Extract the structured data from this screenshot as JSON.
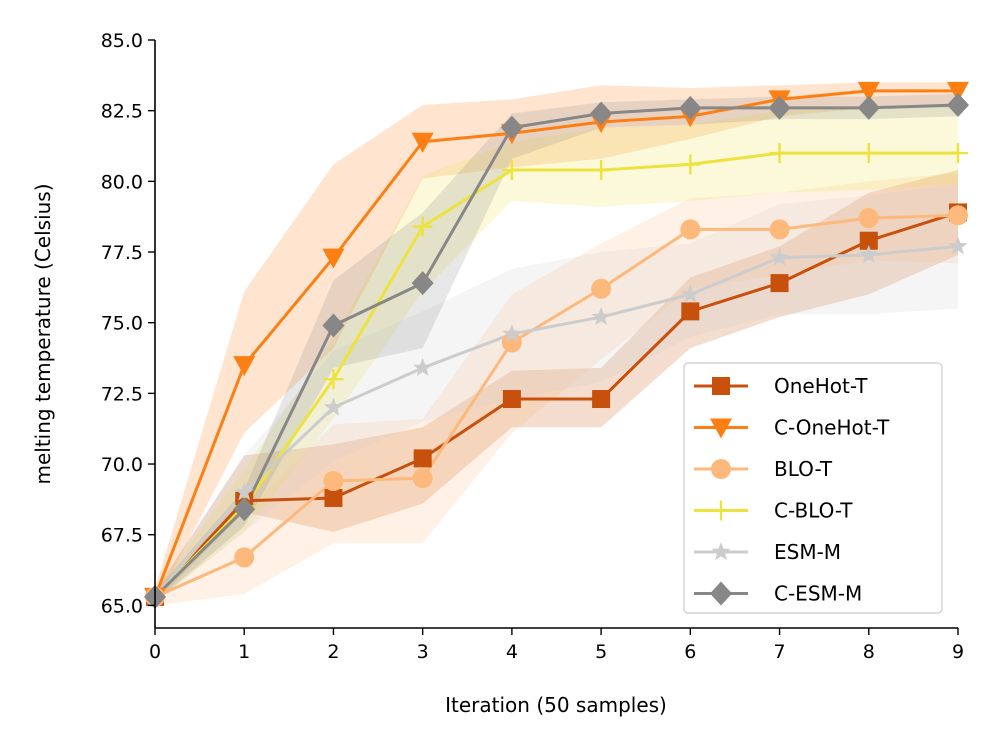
{
  "chart_data": {
    "type": "line",
    "title": "",
    "xlabel": "Iteration (50 samples)",
    "ylabel": "melting temperature (Celsius)",
    "xlim": [
      0,
      9
    ],
    "ylim": [
      64.2,
      85.0
    ],
    "x": [
      0,
      1,
      2,
      3,
      4,
      5,
      6,
      7,
      8,
      9
    ],
    "xticks": [
      "0",
      "1",
      "2",
      "3",
      "4",
      "5",
      "6",
      "7",
      "8",
      "9"
    ],
    "yticks": [
      "65.0",
      "67.5",
      "70.0",
      "72.5",
      "75.0",
      "77.5",
      "80.0",
      "82.5",
      "85.0"
    ],
    "ytick_values": [
      65.0,
      67.5,
      70.0,
      72.5,
      75.0,
      77.5,
      80.0,
      82.5,
      85.0
    ],
    "grid": false,
    "legend_position": "lower-right",
    "series": [
      {
        "name": "OneHot-T",
        "color": "#c6500c",
        "marker": "square",
        "values": [
          65.3,
          68.7,
          68.8,
          70.2,
          72.3,
          72.3,
          75.4,
          76.4,
          77.9,
          78.9
        ],
        "band_low": [
          65.1,
          68.3,
          67.6,
          68.6,
          71.3,
          71.3,
          74.1,
          75.2,
          76.0,
          77.4
        ],
        "band_high": [
          65.5,
          70.3,
          70.7,
          71.3,
          73.3,
          73.4,
          76.6,
          77.7,
          79.6,
          80.4
        ]
      },
      {
        "name": "C-OneHot-T",
        "color": "#fd7f13",
        "marker": "triangle-down",
        "values": [
          65.3,
          73.5,
          77.3,
          81.4,
          81.7,
          82.1,
          82.3,
          82.9,
          83.2,
          83.2
        ],
        "band_low": [
          65.0,
          71.1,
          74.1,
          80.1,
          80.5,
          80.8,
          81.5,
          82.3,
          82.6,
          82.6
        ],
        "band_high": [
          65.6,
          76.1,
          80.6,
          82.7,
          82.9,
          83.4,
          83.3,
          83.4,
          83.5,
          83.5
        ]
      },
      {
        "name": "BLO-T",
        "color": "#fdb97b",
        "marker": "circle",
        "values": [
          65.3,
          66.7,
          69.4,
          69.5,
          74.3,
          76.2,
          78.3,
          78.3,
          78.7,
          78.8
        ],
        "band_low": [
          65.0,
          65.4,
          67.2,
          67.2,
          71.1,
          73.7,
          76.2,
          76.7,
          77.2,
          77.1
        ],
        "band_high": [
          65.6,
          68.3,
          71.4,
          71.6,
          76.0,
          77.8,
          79.4,
          79.6,
          80.0,
          80.3
        ]
      },
      {
        "name": "C-BLO-T",
        "color": "#ede33f",
        "marker": "plus",
        "values": [
          65.3,
          68.5,
          73.0,
          78.4,
          80.4,
          80.4,
          80.6,
          81.0,
          81.0,
          81.0
        ],
        "band_low": [
          65.1,
          67.6,
          71.6,
          76.1,
          79.3,
          79.1,
          79.3,
          79.6,
          79.7,
          79.9
        ],
        "band_high": [
          65.5,
          69.8,
          74.4,
          80.2,
          81.4,
          81.9,
          82.0,
          82.5,
          82.6,
          82.7
        ]
      },
      {
        "name": "ESM-M",
        "color": "#cccccc",
        "marker": "star",
        "values": [
          65.3,
          69.0,
          72.0,
          73.4,
          74.6,
          75.2,
          76.0,
          77.3,
          77.4,
          77.7
        ],
        "band_low": [
          65.1,
          67.6,
          70.1,
          71.5,
          72.3,
          72.9,
          74.5,
          75.3,
          75.3,
          75.5
        ],
        "band_high": [
          65.5,
          70.3,
          74.0,
          75.4,
          76.9,
          77.5,
          77.8,
          79.2,
          79.5,
          79.9
        ]
      },
      {
        "name": "C-ESM-M",
        "color": "#878787",
        "marker": "diamond",
        "values": [
          65.3,
          68.4,
          74.9,
          76.4,
          81.9,
          82.4,
          82.6,
          82.6,
          82.6,
          82.7
        ],
        "band_low": [
          65.1,
          67.8,
          73.4,
          74.1,
          80.8,
          81.9,
          82.0,
          82.2,
          82.2,
          82.3
        ],
        "band_high": [
          65.5,
          69.1,
          76.5,
          78.9,
          82.4,
          82.8,
          82.9,
          83.0,
          83.0,
          83.1
        ]
      }
    ]
  }
}
